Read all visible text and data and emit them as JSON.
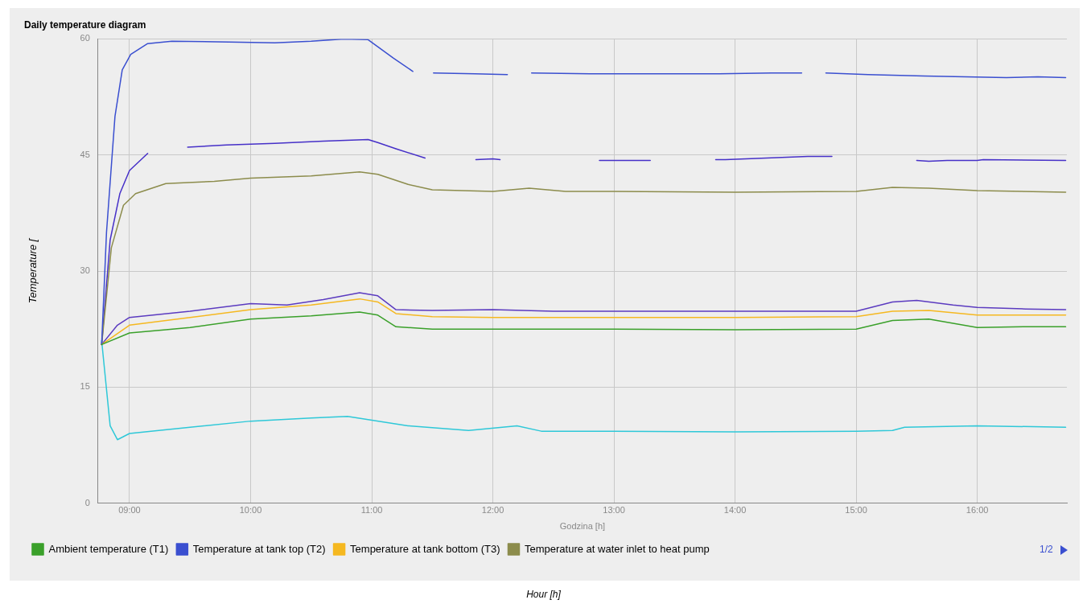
{
  "chart_data": {
    "type": "line",
    "title": "Daily temperature diagram",
    "xlabel": "Godzina [h]",
    "ylabel": "Temperature [",
    "annotations": [
      "1/2",
      "Hour [h]"
    ],
    "xlim": [
      8.74,
      16.74
    ],
    "xticks": [
      {
        "value": 9,
        "label": "09:00"
      },
      {
        "value": 10,
        "label": "10:00"
      },
      {
        "value": 11,
        "label": "11:00"
      },
      {
        "value": 12,
        "label": "12:00"
      },
      {
        "value": 13,
        "label": "13:00"
      },
      {
        "value": 14,
        "label": "14:00"
      },
      {
        "value": 15,
        "label": "15:00"
      },
      {
        "value": 16,
        "label": "16:00"
      }
    ],
    "ylim": [
      0,
      60
    ],
    "yticks": [
      0,
      15,
      30,
      45,
      60
    ],
    "grid": true,
    "legend": "bottom",
    "marker": "none",
    "line_style": "solid",
    "series": [
      {
        "name": "Ambient temperature (T1)",
        "color": "#3aa02a",
        "x": [
          8.77,
          9.0,
          9.3,
          9.5,
          10.0,
          10.5,
          10.9,
          11.05,
          11.2,
          11.5,
          12.0,
          13.0,
          14.0,
          15.0,
          15.3,
          15.6,
          16.0,
          16.4,
          16.73
        ],
        "values": [
          20.5,
          22.0,
          22.4,
          22.7,
          23.8,
          24.2,
          24.7,
          24.3,
          22.8,
          22.5,
          22.5,
          22.5,
          22.4,
          22.5,
          23.6,
          23.8,
          22.7,
          22.8,
          22.8
        ]
      },
      {
        "name": "Temperature at tank top (T2)",
        "color": "#3a4fd0",
        "x": [
          8.77,
          8.81,
          8.88,
          8.94,
          9.01,
          9.15,
          9.35,
          9.82,
          10.2,
          10.5,
          10.77,
          10.97,
          11.05,
          11.18,
          11.34,
          11.42,
          11.51,
          11.85,
          12.12,
          12.2,
          12.32,
          12.8,
          13.2,
          13.87,
          14.3,
          14.55,
          14.65,
          14.75,
          15.1,
          15.56,
          15.9,
          16.24,
          16.5,
          16.73
        ],
        "values": [
          20.5,
          35,
          50,
          56,
          58,
          59.4,
          59.7,
          59.6,
          59.5,
          59.7,
          60,
          59.9,
          59,
          57.5,
          55.8,
          null,
          55.6,
          55.5,
          55.4,
          null,
          55.6,
          55.5,
          55.5,
          55.5,
          55.6,
          55.6,
          null,
          55.6,
          55.4,
          55.2,
          55.1,
          55.0,
          55.1,
          55.0
        ]
      },
      {
        "name": "Temperature at tank bottom (T3)",
        "color": "#f5b820",
        "x": [
          8.77,
          9.0,
          9.5,
          10.0,
          10.5,
          10.9,
          11.05,
          11.2,
          11.5,
          12.0,
          13.0,
          14.0,
          15.0,
          15.3,
          15.6,
          16.0,
          16.4,
          16.73
        ],
        "values": [
          20.5,
          23.0,
          24.0,
          25.0,
          25.6,
          26.4,
          26.0,
          24.5,
          24.1,
          24.0,
          24.0,
          24.0,
          24.1,
          24.8,
          24.9,
          24.3,
          24.3,
          24.3
        ]
      },
      {
        "name": "Temperature at water inlet to heat pump",
        "color": "#8c8c4c",
        "x": [
          8.77,
          8.85,
          8.95,
          9.05,
          9.3,
          9.7,
          10.0,
          10.5,
          10.9,
          11.05,
          11.3,
          11.5,
          12.0,
          12.3,
          12.6,
          13.0,
          14.0,
          15.0,
          15.3,
          15.6,
          16.0,
          16.73
        ],
        "values": [
          20.5,
          33,
          38.5,
          40.0,
          41.3,
          41.6,
          42.0,
          42.3,
          42.8,
          42.5,
          41.2,
          40.5,
          40.3,
          40.7,
          40.3,
          40.3,
          40.2,
          40.3,
          40.8,
          40.7,
          40.4,
          40.2
        ]
      },
      {
        "color": "#4630c8",
        "x": [
          8.77,
          8.84,
          8.92,
          9.0,
          9.15,
          9.25,
          9.48,
          9.8,
          10.2,
          10.6,
          10.97,
          11.05,
          11.2,
          11.44,
          11.5,
          11.86,
          12.0,
          12.06,
          12.2,
          12.88,
          13.3,
          13.32,
          13.84,
          13.92,
          14.6,
          14.8,
          15.3,
          15.5,
          15.6,
          15.75,
          16.0,
          16.05,
          16.73
        ],
        "values": [
          20.5,
          34,
          40,
          43,
          45.2,
          null,
          46,
          46.3,
          46.5,
          46.8,
          47,
          46.6,
          45.8,
          44.6,
          null,
          44.4,
          44.5,
          44.4,
          null,
          44.3,
          44.3,
          null,
          44.4,
          44.4,
          44.8,
          44.8,
          null,
          44.3,
          44.2,
          44.3,
          44.3,
          44.4,
          44.3
        ]
      },
      {
        "color": "#5b3bc0",
        "x": [
          8.77,
          8.9,
          9.0,
          9.5,
          10.0,
          10.3,
          10.6,
          10.9,
          11.05,
          11.2,
          11.5,
          12.0,
          12.5,
          13.0,
          14.0,
          15.0,
          15.3,
          15.5,
          15.8,
          16.0,
          16.4,
          16.73
        ],
        "values": [
          20.5,
          23,
          24,
          24.8,
          25.8,
          25.6,
          26.3,
          27.2,
          26.8,
          25.0,
          24.9,
          25.0,
          24.8,
          24.8,
          24.8,
          24.8,
          26.0,
          26.2,
          25.6,
          25.3,
          25.1,
          25.0
        ]
      },
      {
        "color": "#2ec8d8",
        "x": [
          8.77,
          8.84,
          8.9,
          9.0,
          9.5,
          10.0,
          10.5,
          10.8,
          11.3,
          11.8,
          12.2,
          12.4,
          13.0,
          14.0,
          15.0,
          15.3,
          15.4,
          16.0,
          16.73
        ],
        "values": [
          21,
          10,
          8.2,
          9.0,
          9.8,
          10.6,
          11.0,
          11.2,
          10.0,
          9.4,
          10.0,
          9.3,
          9.3,
          9.2,
          9.3,
          9.4,
          9.8,
          10.0,
          9.8
        ]
      }
    ]
  }
}
